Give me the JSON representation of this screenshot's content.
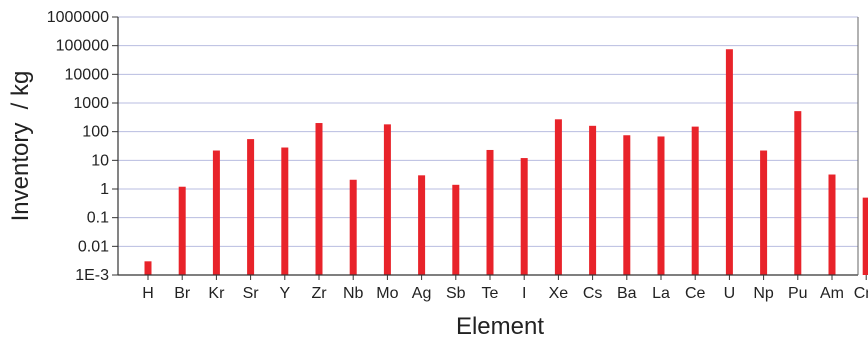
{
  "chart_data": {
    "type": "bar",
    "title": "",
    "xlabel": "Element",
    "ylabel": "Inventory  / kg",
    "yscale": "log",
    "ylim": [
      0.001,
      1000000
    ],
    "ytick_values": [
      0.001,
      0.01,
      0.1,
      1,
      10,
      100,
      1000,
      10000,
      100000,
      1000000
    ],
    "ytick_labels": [
      "1E-3",
      "0.01",
      "0.1",
      "1",
      "10",
      "100",
      "1000",
      "10000",
      "100000",
      "1000000"
    ],
    "grid": true,
    "legend": "none",
    "bar_color": "#e8232a",
    "grid_color": "#b8bde0",
    "categories": [
      "H",
      "Br",
      "Kr",
      "Sr",
      "Y",
      "Zr",
      "Nb",
      "Mo",
      "Ag",
      "Sb",
      "Te",
      "I",
      "Xe",
      "Cs",
      "Ba",
      "La",
      "Ce",
      "U",
      "Np",
      "Pu",
      "Am",
      "Cm"
    ],
    "values": [
      0.003,
      1.2,
      22,
      55,
      28,
      200,
      2.1,
      180,
      3,
      1.4,
      23,
      12,
      270,
      160,
      75,
      68,
      150,
      75000,
      22,
      520,
      3.2,
      0.5
    ]
  }
}
